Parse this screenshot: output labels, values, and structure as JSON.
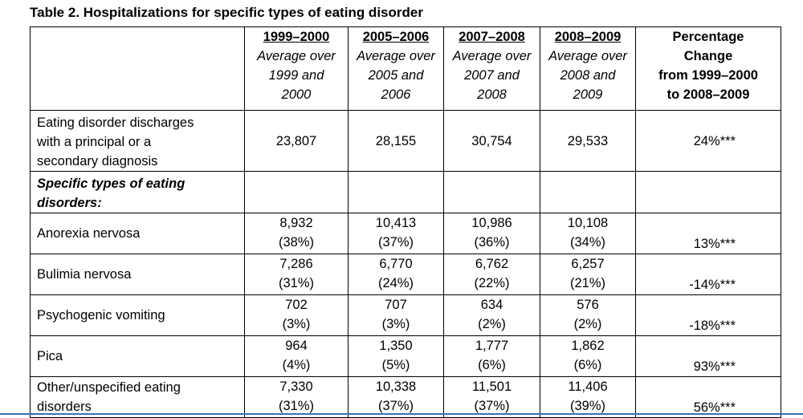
{
  "title": "Table 2. Hospitalizations for specific types of eating disorder",
  "columns": [
    {
      "year": "1999–2000",
      "avg": [
        "Average over",
        "1999 and",
        "2000"
      ]
    },
    {
      "year": "2005–2006",
      "avg": [
        "Average over",
        "2005 and",
        "2006"
      ]
    },
    {
      "year": "2007–2008",
      "avg": [
        "Average over",
        "2007 and",
        "2008"
      ]
    },
    {
      "year": "2008–2009",
      "avg": [
        "Average over",
        "2008 and",
        "2009"
      ]
    },
    {
      "year": "",
      "avg": [
        "Percentage",
        "Change",
        "from 1999–2000",
        "to 2008–2009"
      ]
    }
  ],
  "total_row": {
    "label": [
      "Eating disorder discharges",
      "with a principal or a",
      "secondary diagnosis"
    ],
    "values": [
      "23,807",
      "28,155",
      "30,754",
      "29,533"
    ],
    "change": "24%***"
  },
  "section_label": [
    "Specific types of eating",
    "disorders:"
  ],
  "rows": [
    {
      "label": [
        "Anorexia nervosa"
      ],
      "values": [
        [
          "8,932",
          "(38%)"
        ],
        [
          "10,413",
          "(37%)"
        ],
        [
          "10,986",
          "(36%)"
        ],
        [
          "10,108",
          "(34%)"
        ]
      ],
      "change": "13%***"
    },
    {
      "label": [
        "Bulimia nervosa"
      ],
      "values": [
        [
          "7,286",
          "(31%)"
        ],
        [
          "6,770",
          "(24%)"
        ],
        [
          "6,762",
          "(22%)"
        ],
        [
          "6,257",
          "(21%)"
        ]
      ],
      "change": "-14%***"
    },
    {
      "label": [
        "Psychogenic vomiting"
      ],
      "values": [
        [
          "702",
          "(3%)"
        ],
        [
          "707",
          "(3%)"
        ],
        [
          "634",
          "(2%)"
        ],
        [
          "576",
          "(2%)"
        ]
      ],
      "change": "-18%***"
    },
    {
      "label": [
        "Pica"
      ],
      "values": [
        [
          "964",
          "(4%)"
        ],
        [
          "1,350",
          "(5%)"
        ],
        [
          "1,777",
          "(6%)"
        ],
        [
          "1,862",
          "(6%)"
        ]
      ],
      "change": "93%***"
    },
    {
      "label": [
        "Other/unspecified eating",
        "disorders"
      ],
      "values": [
        [
          "7,330",
          "(31%)"
        ],
        [
          "10,338",
          "(37%)"
        ],
        [
          "11,501",
          "(37%)"
        ],
        [
          "11,406",
          "(39%)"
        ]
      ],
      "change": "56%***"
    }
  ]
}
